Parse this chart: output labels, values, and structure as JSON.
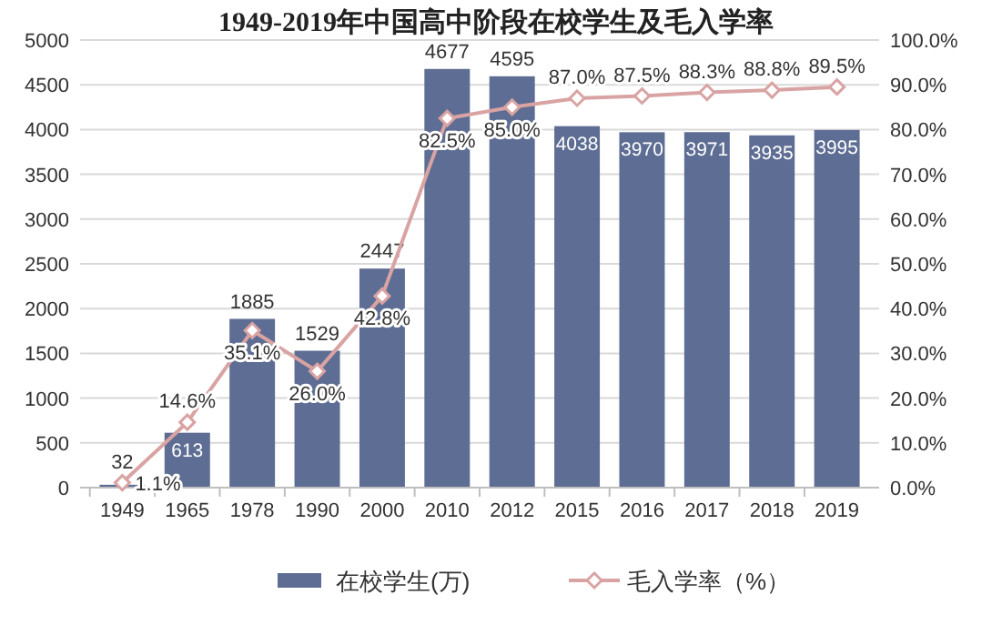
{
  "chart_data": {
    "type": "bar",
    "title": "1949-2019年中国高中阶段在校学生及毛入学率",
    "categories": [
      "1949",
      "1965",
      "1978",
      "1990",
      "2000",
      "2010",
      "2012",
      "2015",
      "2016",
      "2017",
      "2018",
      "2019"
    ],
    "series": [
      {
        "name": "在校学生(万)",
        "color": "#5e6d93",
        "values": [
          32,
          613,
          1885,
          1529,
          2447,
          4677,
          4595,
          4038,
          3970,
          3971,
          3935,
          3995
        ],
        "value_labels": [
          "32",
          "613",
          "1885",
          "1529",
          "2447",
          "4677",
          "4595",
          "4038",
          "3970",
          "3971",
          "3935",
          "3995"
        ]
      },
      {
        "name": "毛入学率（%）",
        "type": "line",
        "axis": "y2",
        "color": "#d9a3a3",
        "marker": "diamond",
        "values": [
          1.1,
          14.6,
          35.1,
          26.0,
          42.8,
          82.5,
          85.0,
          87.0,
          87.5,
          88.3,
          88.8,
          89.5
        ],
        "value_labels": [
          "1.1%",
          "14.6%",
          "35.1%",
          "26.0%",
          "42.8%",
          "82.5%",
          "85.0%",
          "87.0%",
          "87.5%",
          "88.3%",
          "88.8%",
          "89.5%"
        ]
      }
    ],
    "ylim": [
      0,
      5000
    ],
    "yticks": [
      0,
      500,
      1000,
      1500,
      2000,
      2500,
      3000,
      3500,
      4000,
      4500,
      5000
    ],
    "y2lim": [
      0,
      100
    ],
    "y2ticks": [
      {
        "value": 0,
        "label": "0.0%"
      },
      {
        "value": 10,
        "label": "10.0%"
      },
      {
        "value": 20,
        "label": "20.0%"
      },
      {
        "value": 30,
        "label": "30.0%"
      },
      {
        "value": 40,
        "label": "40.0%"
      },
      {
        "value": 50,
        "label": "50.0%"
      },
      {
        "value": 60,
        "label": "60.0%"
      },
      {
        "value": 70,
        "label": "70.0%"
      },
      {
        "value": 80,
        "label": "80.0%"
      },
      {
        "value": 90,
        "label": "90.0%"
      },
      {
        "value": 100,
        "label": "100.0%"
      }
    ],
    "grid": "y",
    "legend": "bottom"
  }
}
